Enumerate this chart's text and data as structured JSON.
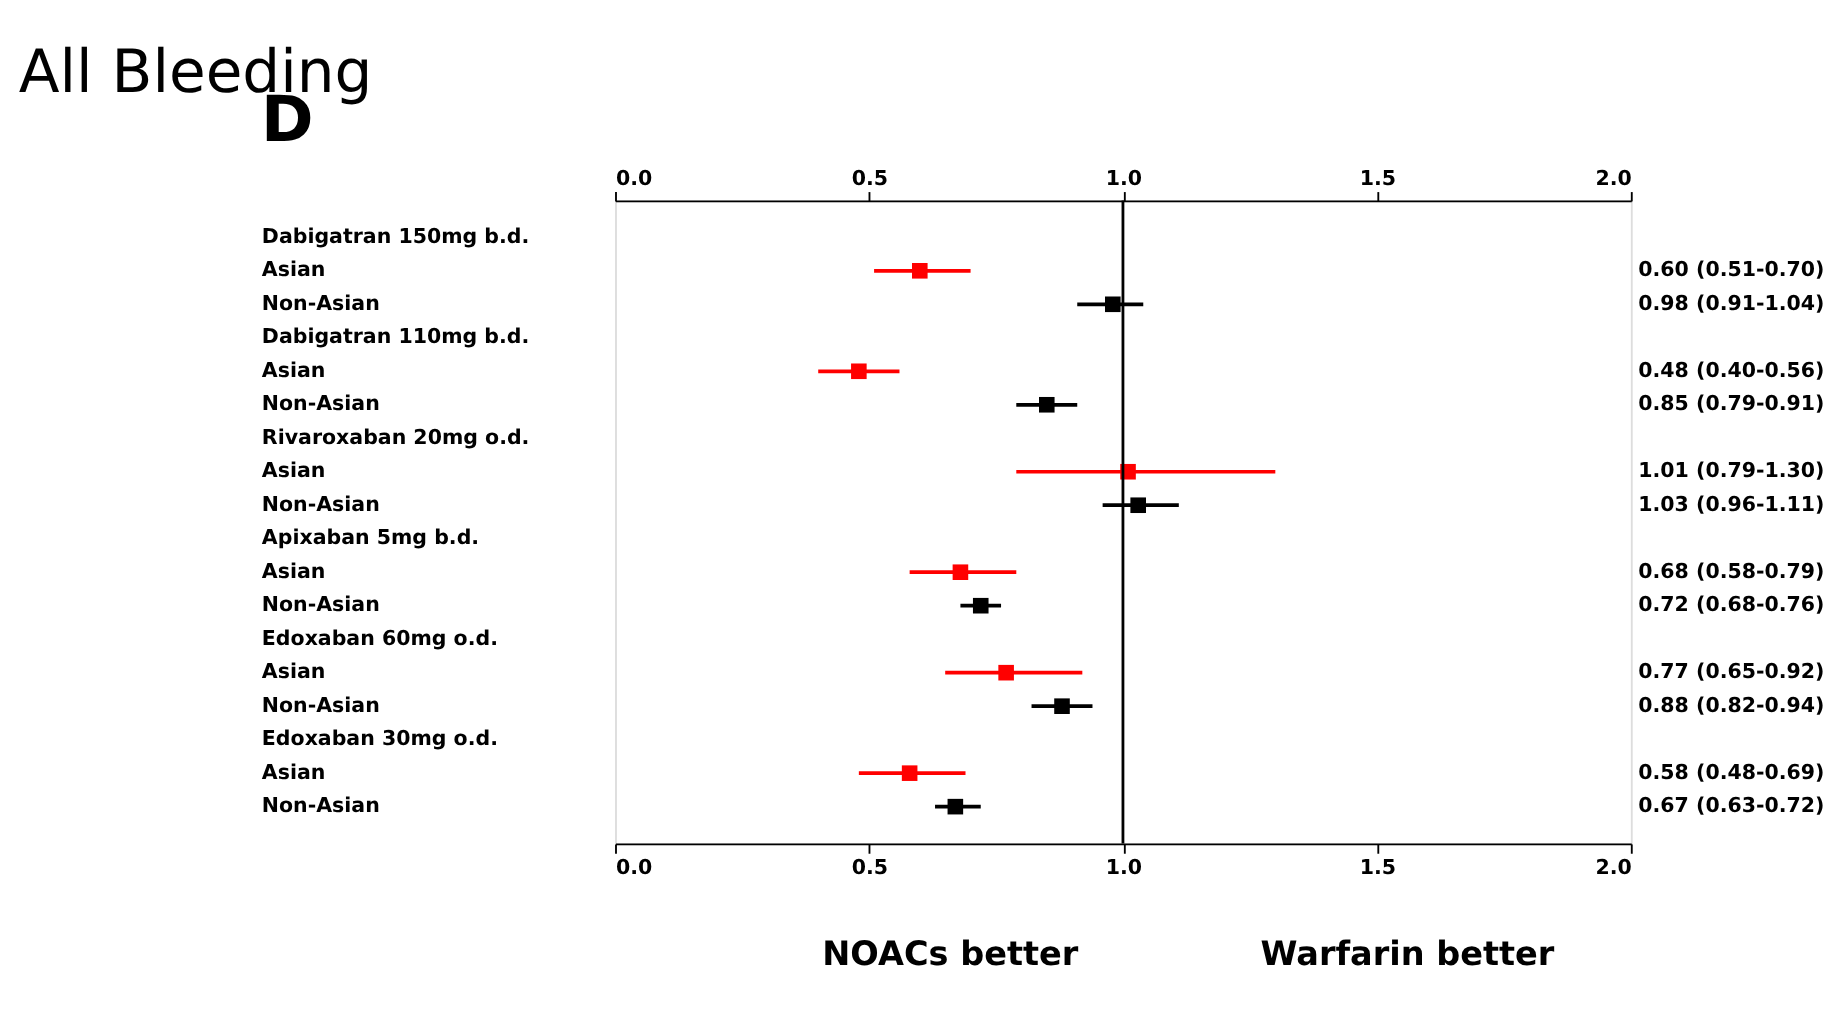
{
  "chart_data": {
    "type": "scatter",
    "orientation": "horizontal",
    "title": "All Bleeding",
    "annotations": [
      "D",
      "NOACs better",
      "Warfarin better"
    ],
    "categories": [
      "Dabigatran 150mg b.d.",
      "Asian",
      "Non-Asian",
      "Dabigatran 110mg b.d.",
      "Asian",
      "Non-Asian",
      "Rivaroxaban 20mg o.d.",
      "Asian",
      "Non-Asian",
      "Apixaban 5mg b.d.",
      "Asian",
      "Non-Asian",
      "Edoxaban 60mg o.d.",
      "Asian",
      "Non-Asian",
      "Edoxaban 30mg o.d.",
      "Asian",
      "Non-Asian"
    ],
    "values": [
      null,
      0.6,
      0.98,
      null,
      0.48,
      0.85,
      null,
      1.01,
      1.03,
      null,
      0.68,
      0.72,
      null,
      0.77,
      0.88,
      null,
      0.58,
      0.67
    ],
    "errors": [
      null,
      [
        0.51,
        0.7
      ],
      [
        0.91,
        1.04
      ],
      null,
      [
        0.4,
        0.56
      ],
      [
        0.79,
        0.91
      ],
      null,
      [
        0.79,
        1.3
      ],
      [
        0.96,
        1.11
      ],
      null,
      [
        0.58,
        0.79
      ],
      [
        0.68,
        0.76
      ],
      null,
      [
        0.65,
        0.92
      ],
      [
        0.82,
        0.94
      ],
      null,
      [
        0.48,
        0.69
      ],
      [
        0.63,
        0.72
      ]
    ],
    "colors": [
      null,
      "#ff0000",
      "#000000",
      null,
      "#ff0000",
      "#000000",
      null,
      "#ff0000",
      "#000000",
      null,
      "#ff0000",
      "#000000",
      null,
      "#ff0000",
      "#000000",
      null,
      "#ff0000",
      "#000000"
    ],
    "value_labels": [
      null,
      "0.60 (0.51-0.70)",
      "0.98 (0.91-1.04)",
      null,
      "0.48 (0.40-0.56)",
      "0.85 (0.79-0.91)",
      null,
      "1.01 (0.79-1.30)",
      "1.03 (0.96-1.11)",
      null,
      "0.68 (0.58-0.79)",
      "0.72 (0.68-0.76)",
      null,
      "0.77 (0.65-0.92)",
      "0.88 (0.82-0.94)",
      null,
      "0.58 (0.48-0.69)",
      "0.67 (0.63-0.72)"
    ],
    "xlim": [
      0,
      2
    ],
    "xticks": [
      {
        "value": 0,
        "label": "0.0"
      },
      0.5,
      {
        "value": 1,
        "label": "1.0"
      },
      1.5,
      {
        "value": 2,
        "label": "2.0"
      }
    ],
    "x2lim": [
      0,
      2
    ],
    "x2ticks": [
      {
        "value": 0,
        "label": "0.0"
      },
      0.5,
      {
        "value": 1,
        "label": "1.0"
      },
      1.5,
      {
        "value": 2,
        "label": "2.0"
      }
    ],
    "ref_lines": [
      {
        "axis": "x",
        "value": 1,
        "color": "#000000"
      }
    ],
    "marker": "square",
    "grid": false,
    "legend": false
  }
}
